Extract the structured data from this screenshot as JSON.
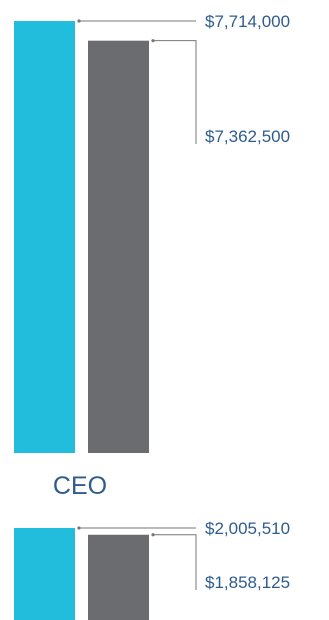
{
  "chart_data": [
    {
      "type": "bar",
      "categories": [
        "CEO"
      ],
      "series": [
        {
          "values": [
            7714000
          ],
          "color": "#22BCDD"
        },
        {
          "values": [
            7362500
          ],
          "color": "#6B6C70"
        }
      ],
      "data_labels": [
        "$7,714,000",
        "$7,362,500"
      ],
      "title": "",
      "xlabel": "CEO",
      "ylabel": "",
      "grid": false
    },
    {
      "type": "bar",
      "categories": [
        ""
      ],
      "series": [
        {
          "values": [
            2005510
          ],
          "color": "#22BCDD"
        },
        {
          "values": [
            1858125
          ],
          "color": "#6B6C70"
        }
      ],
      "data_labels": [
        "$2,005,510",
        "$1,858,125"
      ],
      "title": "",
      "xlabel": "",
      "ylabel": "",
      "grid": false
    }
  ],
  "colors": {
    "primary_bar": "#22BCDD",
    "secondary_bar": "#6B6C70",
    "label_text": "#2E5C8E",
    "leader_line": "#777777"
  }
}
